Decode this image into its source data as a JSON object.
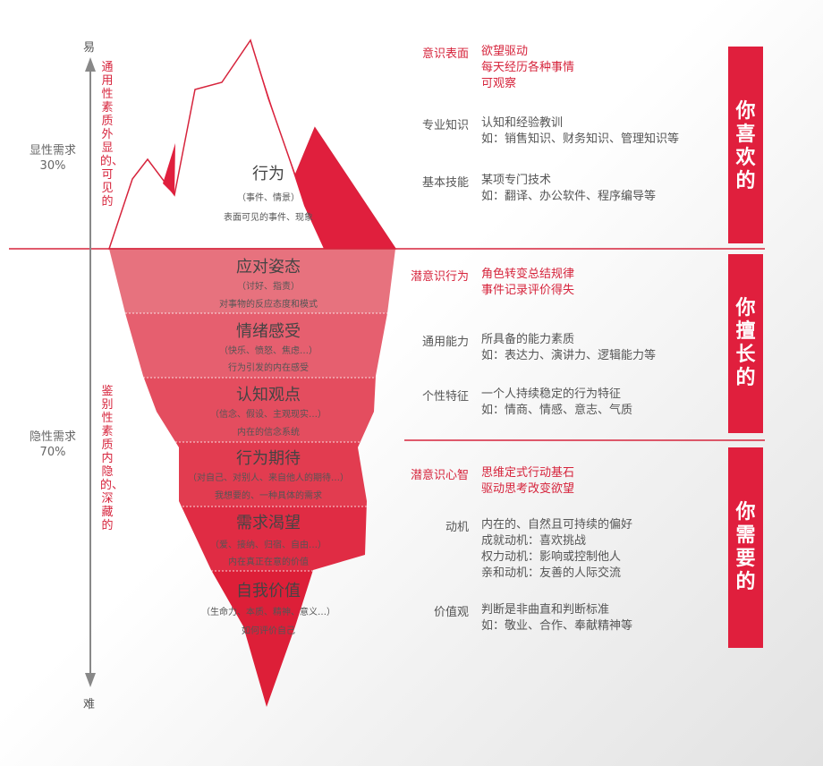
{
  "axis": {
    "top": "易",
    "bottom": "难"
  },
  "visible_side": {
    "label": "显性需求",
    "percent": "30%",
    "vertical_text": "通用性素质 外显的、可见的"
  },
  "hidden_side": {
    "label": "隐性需求",
    "percent": "70%",
    "vertical_text": "鉴别性素质 内隐的、深藏的"
  },
  "layers": [
    {
      "title": "行为",
      "sub": "（事件、情景）",
      "desc": "表面可见的事件、现象"
    },
    {
      "title": "应对姿态",
      "sub": "（讨好、指责）",
      "desc": "对事物的反应态度和模式"
    },
    {
      "title": "情绪感受",
      "sub": "（快乐、愤怒、焦虑…）",
      "desc": "行为引发的内在感受"
    },
    {
      "title": "认知观点",
      "sub": "（信念、假设、主观现实…）",
      "desc": "内在的信念系统"
    },
    {
      "title": "行为期待",
      "sub": "（对自己、对别人、来自他人的期待…）",
      "desc": "我想要的、一种具体的需求"
    },
    {
      "title": "需求渴望",
      "sub": "（爱、接纳、归宿、自由…）",
      "desc": "内在真正在意的价值"
    },
    {
      "title": "自我价值",
      "sub": "（生命力、本质、精神、意义…）",
      "desc": "如何评价自己"
    }
  ],
  "right": {
    "surface": {
      "category": "意识表面",
      "lines": [
        "欲望驱动",
        "每天经历各种事情",
        "可观察"
      ]
    },
    "knowledge": {
      "category": "专业知识",
      "lines": [
        "认知和经验教训",
        "如：销售知识、财务知识、管理知识等"
      ]
    },
    "skills": {
      "category": "基本技能",
      "lines": [
        "某项专门技术",
        "如：翻译、办公软件、程序编导等"
      ]
    },
    "subconscious_behavior": {
      "category": "潜意识行为",
      "lines": [
        "角色转变总结规律",
        "事件记录评价得失"
      ]
    },
    "general_ability": {
      "category": "通用能力",
      "lines": [
        "所具备的能力素质",
        "如：表达力、演讲力、逻辑能力等"
      ]
    },
    "traits": {
      "category": "个性特征",
      "lines": [
        "一个人持续稳定的行为特征",
        "如：情商、情感、意志、气质"
      ]
    },
    "subconscious_mind": {
      "category": "潜意识心智",
      "lines": [
        "思维定式行动基石",
        "驱动思考改变欲望"
      ]
    },
    "motivation": {
      "category": "动机",
      "lines": [
        "内在的、自然且可持续的偏好",
        "成就动机：喜欢挑战",
        "权力动机：影响或控制他人",
        "亲和动机：友善的人际交流"
      ]
    },
    "values": {
      "category": "价值观",
      "lines": [
        "判断是非曲直和判断标准",
        "如：敬业、合作、奉献精神等"
      ]
    }
  },
  "bars": [
    "你喜欢的",
    "你擅长的",
    "你需要的"
  ],
  "colors": {
    "accent": "#e01f3d",
    "text": "#555555"
  }
}
